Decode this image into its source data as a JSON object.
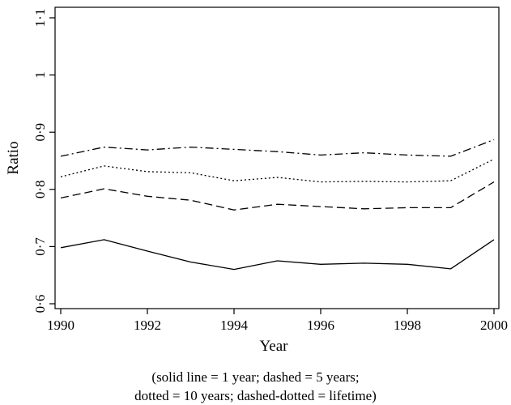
{
  "chart_data": {
    "type": "line",
    "title": "",
    "xlabel": "Year",
    "ylabel": "Ratio",
    "xlim": [
      1990,
      2000
    ],
    "ylim": [
      0.6,
      1.1
    ],
    "xticks": [
      1990,
      1992,
      1994,
      1996,
      1998,
      2000
    ],
    "xtick_labels": [
      "1990",
      "1992",
      "1994",
      "1996",
      "1998",
      "2000"
    ],
    "yticks": [
      0.6,
      0.7,
      0.8,
      0.9,
      1.0,
      1.1
    ],
    "ytick_labels": [
      "0·6",
      "0·7",
      "0·8",
      "0·9",
      "1",
      "1·1"
    ],
    "grid": false,
    "x": [
      1990,
      1991,
      1992,
      1993,
      1994,
      1995,
      1996,
      1997,
      1998,
      1999,
      2000
    ],
    "series": [
      {
        "style": "solid",
        "values": [
          0.698,
          0.712,
          0.692,
          0.673,
          0.66,
          0.675,
          0.669,
          0.671,
          0.669,
          0.661,
          0.712
        ]
      },
      {
        "style": "dashed",
        "values": [
          0.785,
          0.801,
          0.788,
          0.781,
          0.764,
          0.774,
          0.77,
          0.766,
          0.768,
          0.768,
          0.813
        ]
      },
      {
        "style": "dotted",
        "values": [
          0.822,
          0.841,
          0.831,
          0.829,
          0.815,
          0.821,
          0.813,
          0.814,
          0.813,
          0.815,
          0.853
        ]
      },
      {
        "style": "dashed-dotted",
        "values": [
          0.858,
          0.874,
          0.869,
          0.874,
          0.87,
          0.866,
          0.86,
          0.864,
          0.86,
          0.858,
          0.887
        ]
      }
    ]
  },
  "caption": {
    "line1": "(solid line = 1 year; dashed = 5 years;",
    "line2": "dotted = 10 years; dashed-dotted = lifetime)"
  }
}
